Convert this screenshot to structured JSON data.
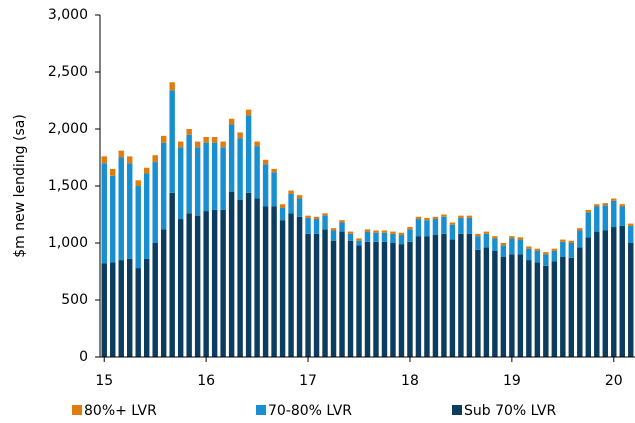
{
  "chart_data": {
    "type": "stacked_bar",
    "y_label": "$m new lending (sa)",
    "categories": [
      "15",
      null,
      null,
      null,
      null,
      null,
      null,
      null,
      null,
      null,
      null,
      null,
      "16",
      null,
      null,
      null,
      null,
      null,
      null,
      null,
      null,
      null,
      null,
      null,
      "17",
      null,
      null,
      null,
      null,
      null,
      null,
      null,
      null,
      null,
      null,
      null,
      "18",
      null,
      null,
      null,
      null,
      null,
      null,
      null,
      null,
      null,
      null,
      null,
      "19",
      null,
      null,
      null,
      null,
      null,
      null,
      null,
      null,
      null,
      null,
      null,
      "20",
      null,
      null
    ],
    "series": [
      {
        "name": "Sub 70% LVR",
        "color": "#0d3d5e",
        "values": [
          820,
          830,
          850,
          860,
          780,
          860,
          1000,
          1120,
          1440,
          1210,
          1260,
          1240,
          1280,
          1290,
          1290,
          1450,
          1380,
          1440,
          1390,
          1320,
          1320,
          1200,
          1260,
          1230,
          1080,
          1080,
          1120,
          1020,
          1100,
          1020,
          980,
          1010,
          1010,
          1010,
          1000,
          990,
          1010,
          1060,
          1060,
          1070,
          1080,
          1030,
          1080,
          1080,
          940,
          960,
          930,
          880,
          900,
          900,
          850,
          830,
          800,
          840,
          880,
          870,
          960,
          1050,
          1100,
          1110,
          1140,
          1150,
          1000
        ]
      },
      {
        "name": "70-80% LVR",
        "color": "#1a8fd0",
        "values": [
          880,
          760,
          900,
          840,
          720,
          750,
          710,
          760,
          900,
          630,
          690,
          600,
          600,
          590,
          550,
          590,
          540,
          680,
          460,
          370,
          300,
          110,
          170,
          160,
          140,
          130,
          120,
          90,
          80,
          60,
          40,
          90,
          80,
          80,
          80,
          80,
          110,
          150,
          140,
          140,
          150,
          130,
          140,
          140,
          120,
          120,
          110,
          100,
          140,
          130,
          100,
          100,
          100,
          90,
          130,
          130,
          150,
          220,
          220,
          220,
          230,
          170,
          150
        ]
      },
      {
        "name": "80%+ LVR",
        "color": "#e07b10",
        "values": [
          60,
          60,
          60,
          60,
          50,
          50,
          60,
          60,
          70,
          50,
          50,
          50,
          50,
          50,
          50,
          50,
          50,
          50,
          40,
          40,
          30,
          30,
          30,
          30,
          20,
          20,
          20,
          20,
          20,
          20,
          20,
          20,
          20,
          20,
          20,
          20,
          20,
          20,
          20,
          20,
          20,
          20,
          20,
          20,
          20,
          20,
          20,
          20,
          20,
          20,
          20,
          20,
          20,
          20,
          20,
          20,
          20,
          20,
          20,
          20,
          20,
          20,
          20
        ]
      }
    ],
    "ylim": [
      0,
      3000
    ],
    "yticks": [
      0,
      500,
      {
        "value": 1000,
        "label": "1,000"
      },
      {
        "value": 1500,
        "label": "1,500"
      },
      {
        "value": 2000,
        "label": "2,000"
      },
      {
        "value": 2500,
        "label": "2,500"
      },
      {
        "value": 3000,
        "label": "3,000"
      }
    ],
    "legend_order": [
      2,
      1,
      0
    ]
  }
}
